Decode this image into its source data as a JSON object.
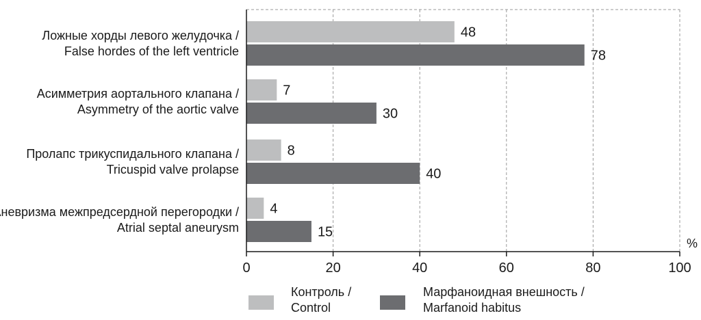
{
  "chart_data": {
    "type": "bar",
    "orientation": "horizontal",
    "categories": [
      [
        "Ложные хорды левого желудочка /",
        "False hordes of the left ventricle"
      ],
      [
        "Асимметрия аортального клапана /",
        "Asymmetry of the aortic valve"
      ],
      [
        "Пролапс трикуспидального клапана /",
        "Tricuspid valve prolapse"
      ],
      [
        "Аневризма межпредсердной перегородки /",
        "Atrial septal aneurysm"
      ]
    ],
    "series": [
      {
        "name": [
          "Контроль /",
          "Control"
        ],
        "values": [
          48,
          7,
          8,
          4
        ],
        "color": "#bdbebf"
      },
      {
        "name": [
          "Марфаноидная внешность /",
          "Marfanoid habitus"
        ],
        "values": [
          78,
          30,
          40,
          15
        ],
        "color": "#6c6d70"
      }
    ],
    "xlim": [
      0,
      100
    ],
    "xticks": [
      0,
      20,
      40,
      60,
      80,
      100
    ],
    "xunit": "%",
    "grid": "vertical-dashed",
    "legend": "bottom"
  }
}
